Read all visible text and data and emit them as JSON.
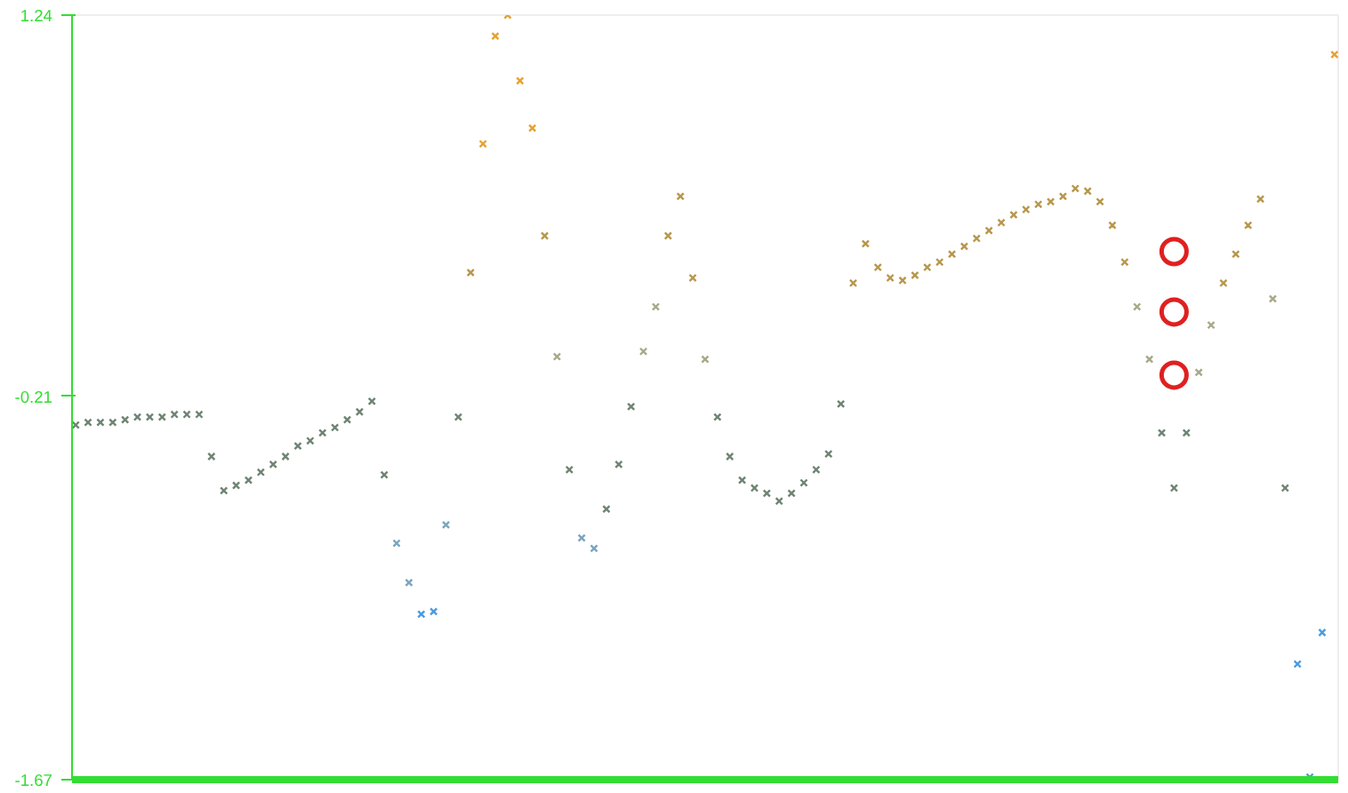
{
  "chart_data": {
    "type": "scatter",
    "categories": [
      null,
      null,
      null,
      null,
      null,
      null,
      null,
      null,
      null,
      null,
      null,
      null,
      null,
      null,
      null,
      null,
      null,
      null,
      null,
      null,
      null,
      null,
      null,
      null,
      null,
      null,
      null,
      null,
      null,
      null,
      null,
      null,
      null,
      null,
      null,
      null,
      null,
      null,
      null,
      null,
      null,
      null,
      null,
      null,
      null,
      null,
      null,
      null,
      null,
      null,
      null,
      null,
      null,
      null,
      null,
      null,
      null,
      null,
      null,
      null,
      null,
      null,
      null,
      null,
      null,
      null,
      null,
      null,
      null,
      null,
      null,
      null,
      null,
      null,
      null,
      null,
      null,
      null,
      null,
      null,
      null,
      null,
      null,
      null,
      null,
      null,
      null,
      null,
      null,
      null,
      null,
      null,
      null,
      null,
      null,
      null,
      null,
      null,
      null,
      null,
      null,
      null,
      null
    ],
    "ylim": [
      -1.67,
      1.24
    ],
    "yticks": [
      1.24,
      -0.21,
      -1.67
    ],
    "tick_labels": "y",
    "grid": false,
    "series": [
      {
        "marker": "cross",
        "values": [
          -0.32,
          -0.31,
          -0.31,
          -0.31,
          -0.3,
          -0.29,
          -0.29,
          -0.29,
          -0.28,
          -0.28,
          -0.28,
          -0.44,
          -0.57,
          -0.55,
          -0.53,
          -0.5,
          -0.47,
          -0.44,
          -0.4,
          -0.38,
          -0.35,
          -0.33,
          -0.3,
          -0.27,
          -0.23,
          -0.51,
          -0.77,
          -0.92,
          -1.04,
          -1.03,
          -0.7,
          -0.29,
          0.26,
          0.75,
          1.16,
          1.24,
          0.99,
          0.81,
          0.4,
          -0.06,
          -0.49,
          -0.75,
          -0.79,
          -0.64,
          -0.47,
          -0.25,
          -0.04,
          0.13,
          0.4,
          0.55,
          0.24,
          -0.07,
          -0.29,
          -0.44,
          -0.53,
          -0.56,
          -0.58,
          -0.61,
          -0.58,
          -0.54,
          -0.49,
          -0.43,
          -0.24,
          0.22,
          0.37,
          0.28,
          0.24,
          0.23,
          0.25,
          0.28,
          0.3,
          0.33,
          0.36,
          0.39,
          0.42,
          0.45,
          0.48,
          0.5,
          0.52,
          0.53,
          0.55,
          0.58,
          0.57,
          0.53,
          0.44,
          0.3,
          0.13,
          -0.07,
          -0.35,
          -0.56,
          -0.35,
          -0.12,
          0.06,
          0.22,
          0.33,
          0.44,
          0.54,
          0.16,
          -0.56,
          -1.23,
          -1.66,
          -1.11,
          1.09
        ],
        "colors": [
          "#6e8472",
          "#6e8472",
          "#6e8472",
          "#6e8472",
          "#6e8472",
          "#6e8472",
          "#6e8472",
          "#6e8472",
          "#6e8472",
          "#6e8472",
          "#6e8472",
          "#6e8472",
          "#6e8472",
          "#6e8472",
          "#6e8472",
          "#6e8472",
          "#6e8472",
          "#6e8472",
          "#6e8472",
          "#6e8472",
          "#6e8472",
          "#6e8472",
          "#6e8472",
          "#6e8472",
          "#6e8472",
          "#6e8472",
          "#7aa5c0",
          "#7aa5c0",
          "#4a9be0",
          "#4a9be0",
          "#7aa5c0",
          "#6e8472",
          "#b8964a",
          "#e8a030",
          "#e8a030",
          "#e8a030",
          "#e8a030",
          "#e8a030",
          "#b8964a",
          "#a8a888",
          "#6e8472",
          "#7aa5c0",
          "#7aa5c0",
          "#6e8472",
          "#6e8472",
          "#6e8472",
          "#a8a888",
          "#a8a888",
          "#b8964a",
          "#b8964a",
          "#b8964a",
          "#a8a888",
          "#6e8472",
          "#6e8472",
          "#6e8472",
          "#6e8472",
          "#6e8472",
          "#6e8472",
          "#6e8472",
          "#6e8472",
          "#6e8472",
          "#6e8472",
          "#6e8472",
          "#b8964a",
          "#b8964a",
          "#b8964a",
          "#b8964a",
          "#b8964a",
          "#b8964a",
          "#b8964a",
          "#b8964a",
          "#b8964a",
          "#b8964a",
          "#b8964a",
          "#b8964a",
          "#b8964a",
          "#b8964a",
          "#b8964a",
          "#b8964a",
          "#b8964a",
          "#b8964a",
          "#b8964a",
          "#b8964a",
          "#b8964a",
          "#b8964a",
          "#b8964a",
          "#a8a888",
          "#a8a888",
          "#6e8472",
          "#6e8472",
          "#6e8472",
          "#a8a888",
          "#a8a888",
          "#b8964a",
          "#b8964a",
          "#b8964a",
          "#b8964a",
          "#a8a888",
          "#6e8472",
          "#4a9be0",
          "#4a9be0",
          "#4a9be0",
          "#e8a030"
        ]
      },
      {
        "marker": "circle",
        "color": "#e02020",
        "values": [
          null,
          null,
          null,
          null,
          null,
          null,
          null,
          null,
          null,
          null,
          null,
          null,
          null,
          null,
          null,
          null,
          null,
          null,
          null,
          null,
          null,
          null,
          null,
          null,
          null,
          null,
          null,
          null,
          null,
          null,
          null,
          null,
          null,
          null,
          null,
          null,
          null,
          null,
          null,
          null,
          null,
          null,
          null,
          null,
          null,
          null,
          null,
          null,
          null,
          null,
          null,
          null,
          null,
          null,
          null,
          null,
          null,
          null,
          null,
          null,
          null,
          null,
          null,
          null,
          null,
          null,
          null,
          null,
          null,
          null,
          null,
          null,
          null,
          null,
          null,
          null,
          null,
          null,
          null,
          null,
          null,
          null,
          null,
          null,
          null,
          null,
          null,
          null,
          null,
          0.34,
          null,
          null,
          null,
          null,
          null,
          null,
          null,
          null,
          null,
          null,
          null,
          null,
          null
        ]
      },
      {
        "marker": "circle",
        "color": "#e02020",
        "values": [
          null,
          null,
          null,
          null,
          null,
          null,
          null,
          null,
          null,
          null,
          null,
          null,
          null,
          null,
          null,
          null,
          null,
          null,
          null,
          null,
          null,
          null,
          null,
          null,
          null,
          null,
          null,
          null,
          null,
          null,
          null,
          null,
          null,
          null,
          null,
          null,
          null,
          null,
          null,
          null,
          null,
          null,
          null,
          null,
          null,
          null,
          null,
          null,
          null,
          null,
          null,
          null,
          null,
          null,
          null,
          null,
          null,
          null,
          null,
          null,
          null,
          null,
          null,
          null,
          null,
          null,
          null,
          null,
          null,
          null,
          null,
          null,
          null,
          null,
          null,
          null,
          null,
          null,
          null,
          null,
          null,
          null,
          null,
          null,
          null,
          null,
          null,
          null,
          null,
          0.11,
          null,
          null,
          null,
          null,
          null,
          null,
          null,
          null,
          null,
          null,
          null,
          null,
          null
        ]
      },
      {
        "marker": "circle",
        "color": "#e02020",
        "values": [
          null,
          null,
          null,
          null,
          null,
          null,
          null,
          null,
          null,
          null,
          null,
          null,
          null,
          null,
          null,
          null,
          null,
          null,
          null,
          null,
          null,
          null,
          null,
          null,
          null,
          null,
          null,
          null,
          null,
          null,
          null,
          null,
          null,
          null,
          null,
          null,
          null,
          null,
          null,
          null,
          null,
          null,
          null,
          null,
          null,
          null,
          null,
          null,
          null,
          null,
          null,
          null,
          null,
          null,
          null,
          null,
          null,
          null,
          null,
          null,
          null,
          null,
          null,
          null,
          null,
          null,
          null,
          null,
          null,
          null,
          null,
          null,
          null,
          null,
          null,
          null,
          null,
          null,
          null,
          null,
          null,
          null,
          null,
          null,
          null,
          null,
          null,
          null,
          null,
          -0.13,
          null,
          null,
          null,
          null,
          null,
          null,
          null,
          null,
          null,
          null,
          null,
          null,
          null
        ]
      }
    ]
  }
}
